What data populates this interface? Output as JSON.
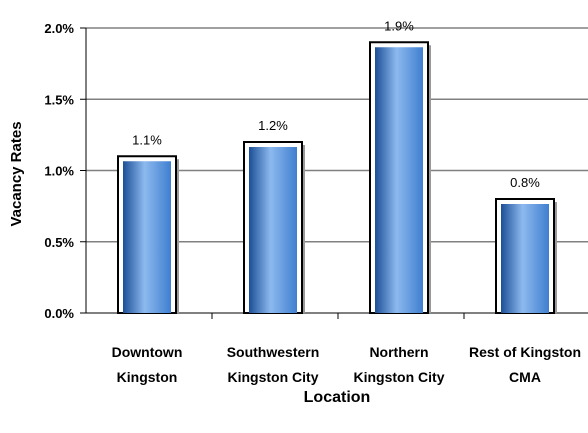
{
  "chart_data": {
    "type": "bar",
    "categories": [
      [
        "Downtown",
        "Kingston"
      ],
      [
        "Southwestern",
        "Kingston City"
      ],
      [
        "Northern",
        "Kingston City"
      ],
      [
        "Rest of Kingston",
        "CMA"
      ]
    ],
    "values": [
      1.1,
      1.2,
      1.9,
      0.8
    ],
    "data_labels": [
      "1.1%",
      "1.2%",
      "1.9%",
      "0.8%"
    ],
    "title": "",
    "xlabel": "Location",
    "ylabel": "Vacancy Rates",
    "ylim": [
      0,
      2.0
    ],
    "yticks": [
      0,
      0.5,
      1.0,
      1.5,
      2.0
    ],
    "ytick_labels": [
      "0.0%",
      "0.5%",
      "1.0%",
      "1.5%",
      "2.0%"
    ],
    "grid": "horizontal",
    "legend": "none",
    "bar_color": "#3f7fd0",
    "bar_color_dark": "#1c4f97",
    "bar_color_light": "#8db9ee"
  }
}
